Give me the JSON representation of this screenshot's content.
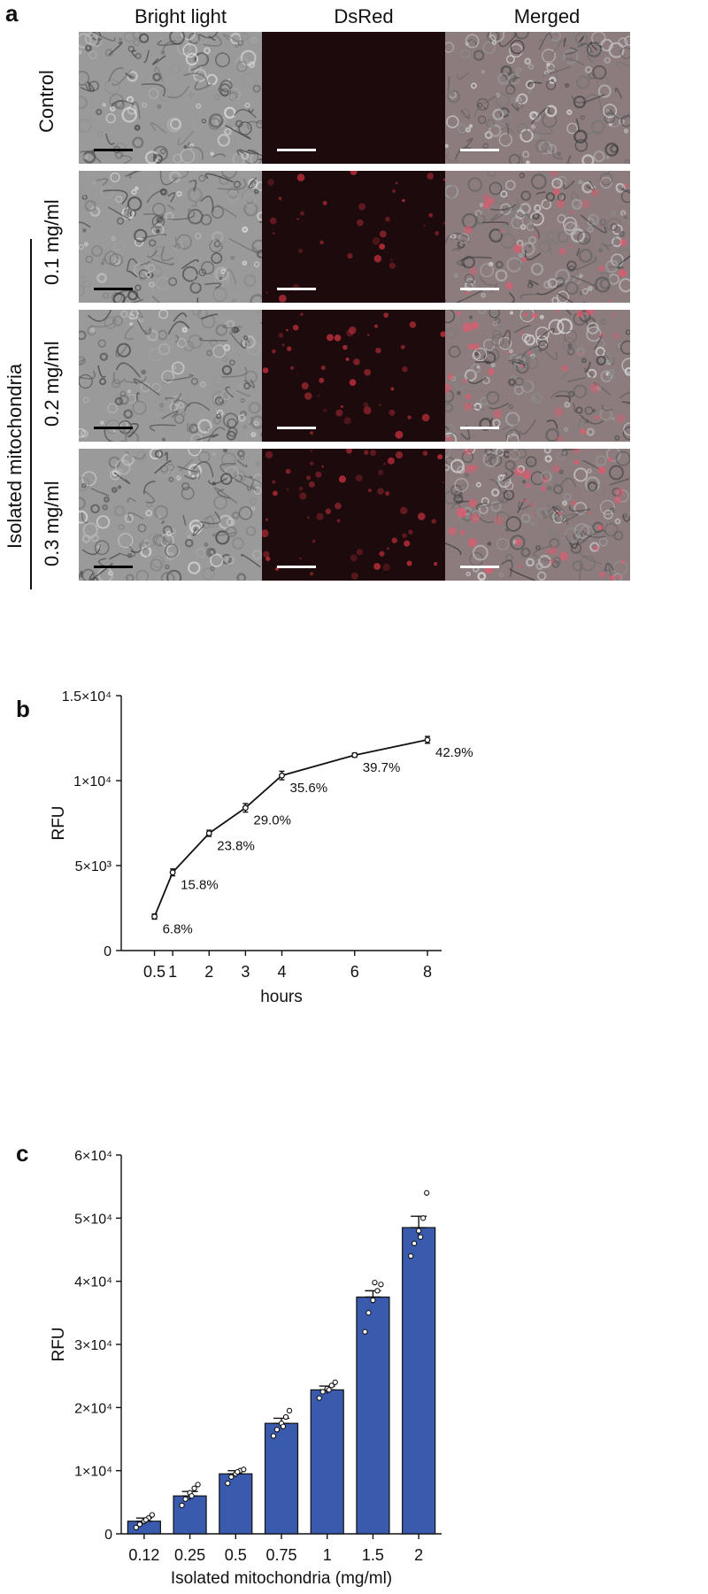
{
  "panel_a": {
    "letter": "a",
    "columns": [
      "Bright light",
      "DsRed",
      "Merged"
    ],
    "rows": [
      "Control",
      "0.1 mg/ml",
      "0.2 mg/ml",
      "0.3 mg/ml"
    ],
    "group_label": "Isolated mitochondria",
    "colors": {
      "bright": "#9a9a9a",
      "dsred_bg": "#1c0a0c",
      "dsred_spot": "#c2303c",
      "merged": "#8c7c7e",
      "scalebar_dark": "#000000",
      "scalebar_light": "#ffffff"
    }
  },
  "chart_data": [
    {
      "panel": "b",
      "type": "line",
      "x": [
        0.5,
        1,
        2,
        3,
        4,
        6,
        8
      ],
      "y": [
        2000,
        4600,
        6900,
        8400,
        10300,
        11500,
        12400
      ],
      "y_err": [
        150,
        200,
        180,
        250,
        250,
        120,
        200
      ],
      "point_labels": [
        "6.8%",
        "15.8%",
        "23.8%",
        "29.0%",
        "35.6%",
        "39.7%",
        "42.9%"
      ],
      "xlabel": "hours",
      "ylabel": "RFU",
      "xticks": [
        "0.5",
        "1",
        "2",
        "3",
        "4",
        "6",
        "8"
      ],
      "yticks": [
        "0",
        "5×10³",
        "1×10⁴",
        "1.5×10⁴"
      ],
      "ylim": [
        0,
        15000
      ],
      "xlim": [
        0,
        8.3
      ],
      "grid": false,
      "color": "#111111"
    },
    {
      "panel": "c",
      "type": "bar",
      "categories": [
        "0.12",
        "0.25",
        "0.5",
        "0.75",
        "1",
        "1.5",
        "2"
      ],
      "values": [
        2000,
        6000,
        9500,
        17500,
        22800,
        37500,
        48500
      ],
      "errors": [
        500,
        700,
        500,
        800,
        600,
        1000,
        1800
      ],
      "points": [
        [
          1000,
          1500,
          2000,
          2500,
          3000,
          2200
        ],
        [
          4500,
          5500,
          6500,
          7200,
          7800,
          6000
        ],
        [
          8000,
          9000,
          9500,
          10000,
          10200,
          9800
        ],
        [
          15500,
          16500,
          17500,
          18500,
          19500,
          17000
        ],
        [
          21500,
          22500,
          23000,
          23500,
          24000,
          22800
        ],
        [
          32000,
          35000,
          37000,
          38500,
          39500,
          39800
        ],
        [
          44000,
          46000,
          48000,
          50000,
          54000,
          47000
        ]
      ],
      "xlabel": "Isolated mitochondria (mg/ml)",
      "ylabel": "RFU",
      "yticks": [
        "0",
        "1×10⁴",
        "2×10⁴",
        "3×10⁴",
        "4×10⁴",
        "5×10⁴",
        "6×10⁴"
      ],
      "ylim": [
        0,
        60000
      ],
      "grid": false,
      "bar_color": "#3a5aad"
    }
  ],
  "panel_b": {
    "letter": "b"
  },
  "panel_c": {
    "letter": "c"
  }
}
